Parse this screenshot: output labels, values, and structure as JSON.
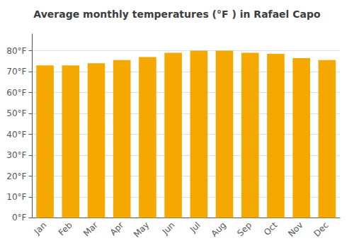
{
  "chart_data": {
    "type": "bar",
    "title": "Average monthly temperatures (°F ) in Rafael Capo",
    "categories": [
      "Jan",
      "Feb",
      "Mar",
      "Apr",
      "May",
      "Jun",
      "Jul",
      "Aug",
      "Sep",
      "Oct",
      "Nov",
      "Dec"
    ],
    "values": [
      73,
      73,
      74,
      75.5,
      77,
      79,
      80,
      80,
      79,
      78.5,
      76.5,
      75.5
    ],
    "color": "#F5A800",
    "ylim": [
      0,
      88
    ],
    "yticks": [
      {
        "value": 0,
        "label": "0°F"
      },
      {
        "value": 10,
        "label": "10°F"
      },
      {
        "value": 20,
        "label": "20°F"
      },
      {
        "value": 30,
        "label": "30°F"
      },
      {
        "value": 40,
        "label": "40°F"
      },
      {
        "value": 50,
        "label": "50°F"
      },
      {
        "value": 60,
        "label": "60°F"
      },
      {
        "value": 70,
        "label": "70°F"
      },
      {
        "value": 80,
        "label": "80°F"
      }
    ],
    "grid": true
  }
}
